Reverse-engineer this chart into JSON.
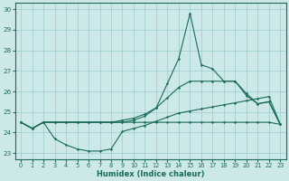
{
  "xlabel": "Humidex (Indice chaleur)",
  "xlim": [
    -0.5,
    23.5
  ],
  "ylim": [
    22.7,
    30.3
  ],
  "xticks": [
    0,
    1,
    2,
    3,
    4,
    5,
    6,
    7,
    8,
    9,
    10,
    11,
    12,
    13,
    14,
    15,
    16,
    17,
    18,
    19,
    20,
    21,
    22,
    23
  ],
  "yticks": [
    23,
    24,
    25,
    26,
    27,
    28,
    29,
    30
  ],
  "background_color": "#cce8e8",
  "grid_color": "#99cccc",
  "line_color": "#1a6b5a",
  "series": [
    {
      "x": [
        0,
        1,
        2,
        3,
        4,
        5,
        6,
        7,
        8,
        9,
        10,
        11,
        12,
        13,
        14,
        15,
        16,
        17,
        18,
        19,
        20,
        21,
        22,
        23
      ],
      "y": [
        24.5,
        24.2,
        24.5,
        23.7,
        23.4,
        23.2,
        23.1,
        23.1,
        23.2,
        24.05,
        24.2,
        24.35,
        24.55,
        24.75,
        24.95,
        25.05,
        25.15,
        25.25,
        25.35,
        25.45,
        25.55,
        25.65,
        25.75,
        24.4
      ]
    },
    {
      "x": [
        0,
        1,
        2,
        3,
        4,
        5,
        6,
        7,
        8,
        9,
        10,
        11,
        12,
        13,
        14,
        15,
        16,
        17,
        18,
        19,
        20,
        21,
        22,
        23
      ],
      "y": [
        24.5,
        24.2,
        24.5,
        24.5,
        24.5,
        24.5,
        24.5,
        24.5,
        24.5,
        24.5,
        24.5,
        24.5,
        24.5,
        24.5,
        24.5,
        24.5,
        24.5,
        24.5,
        24.5,
        24.5,
        24.5,
        24.5,
        24.5,
        24.4
      ]
    },
    {
      "x": [
        0,
        1,
        2,
        3,
        4,
        5,
        6,
        7,
        8,
        9,
        10,
        11,
        12,
        13,
        14,
        15,
        16,
        17,
        18,
        19,
        20,
        21,
        22,
        23
      ],
      "y": [
        24.5,
        24.2,
        24.5,
        24.5,
        24.5,
        24.5,
        24.5,
        24.5,
        24.5,
        24.6,
        24.7,
        24.9,
        25.2,
        25.7,
        26.2,
        26.5,
        26.5,
        26.5,
        26.5,
        26.5,
        25.9,
        25.4,
        25.5,
        24.4
      ]
    },
    {
      "x": [
        0,
        1,
        2,
        3,
        4,
        5,
        6,
        7,
        8,
        9,
        10,
        11,
        12,
        13,
        14,
        15,
        16,
        17,
        18,
        19,
        20,
        21,
        22,
        23
      ],
      "y": [
        24.5,
        24.2,
        24.5,
        24.5,
        24.5,
        24.5,
        24.5,
        24.5,
        24.5,
        24.5,
        24.6,
        24.8,
        25.2,
        26.4,
        27.6,
        29.8,
        27.3,
        27.1,
        26.5,
        26.5,
        25.8,
        25.4,
        25.5,
        24.4
      ]
    }
  ]
}
